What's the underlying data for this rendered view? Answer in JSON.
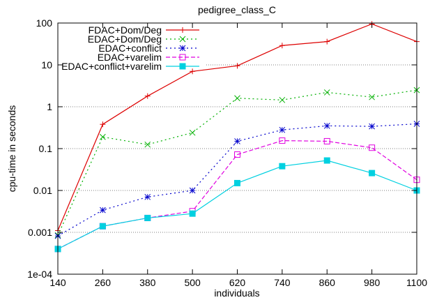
{
  "chart_data": {
    "type": "line",
    "title": "pedigree_class_C",
    "xlabel": "individuals",
    "ylabel": "cpu-time in seconds",
    "x": [
      140,
      260,
      380,
      500,
      620,
      740,
      860,
      980,
      1100
    ],
    "x_tick_labels": [
      "140",
      "260",
      "380",
      "500",
      "620",
      "740",
      "860",
      "980",
      "1100"
    ],
    "y_scale": "log",
    "ylim": [
      0.0001,
      100
    ],
    "y_ticks": [
      0.0001,
      0.001,
      0.01,
      0.1,
      1,
      10,
      100
    ],
    "y_tick_labels": [
      "1e-04",
      "0.001",
      "0.01",
      "0.1",
      "1",
      "10",
      "100"
    ],
    "grid": "horizontal",
    "legend_position": "top-left",
    "series": [
      {
        "name": "FDAC+Dom/Deg",
        "color": "#dd0000",
        "line_style": "solid",
        "marker": "plus",
        "values": [
          0.0011,
          0.38,
          1.8,
          7,
          9.5,
          29,
          36,
          95,
          36
        ]
      },
      {
        "name": "EDAC+Dom/Deg",
        "color": "#00b000",
        "line_style": "dotted",
        "marker": "cross",
        "values": [
          0.00085,
          0.19,
          0.125,
          0.24,
          1.6,
          1.45,
          2.2,
          1.7,
          2.5
        ]
      },
      {
        "name": "EDAC+conflict",
        "color": "#0000cc",
        "line_style": "dotted",
        "marker": "star",
        "values": [
          0.00082,
          0.0034,
          0.007,
          0.01,
          0.15,
          0.28,
          0.35,
          0.34,
          0.39
        ]
      },
      {
        "name": "EDAC+varelim",
        "color": "#e000e0",
        "line_style": "dashed",
        "marker": "open-square",
        "values": [
          0.0004,
          0.0014,
          0.0022,
          0.0032,
          0.072,
          0.155,
          0.15,
          0.105,
          0.018
        ]
      },
      {
        "name": "EDAC+conflict+varelim",
        "color": "#00d0e0",
        "line_style": "solid",
        "marker": "filled-square",
        "values": [
          0.0004,
          0.0014,
          0.0022,
          0.0028,
          0.015,
          0.038,
          0.052,
          0.026,
          0.01
        ]
      }
    ]
  }
}
